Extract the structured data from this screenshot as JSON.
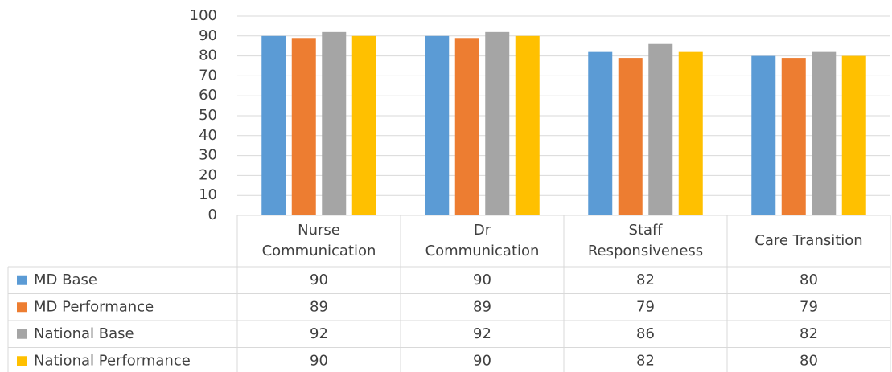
{
  "chart_data": {
    "type": "bar",
    "categories": [
      "Nurse\nCommunication",
      "Dr\nCommunication",
      "Staff\nResponsiveness",
      "Care Transition"
    ],
    "series": [
      {
        "name": "MD Base",
        "color": "#5b9bd5",
        "values": [
          90,
          90,
          82,
          80
        ]
      },
      {
        "name": "MD Performance",
        "color": "#ed7d31",
        "values": [
          89,
          89,
          79,
          79
        ]
      },
      {
        "name": "National Base",
        "color": "#a5a5a5",
        "values": [
          92,
          92,
          86,
          82
        ]
      },
      {
        "name": "National Performance",
        "color": "#ffc000",
        "values": [
          90,
          90,
          82,
          80
        ]
      }
    ],
    "ylim": [
      0,
      100
    ],
    "yticks": [
      0,
      10,
      20,
      30,
      40,
      50,
      60,
      70,
      80,
      90,
      100
    ],
    "grid": true,
    "data_table": true
  }
}
